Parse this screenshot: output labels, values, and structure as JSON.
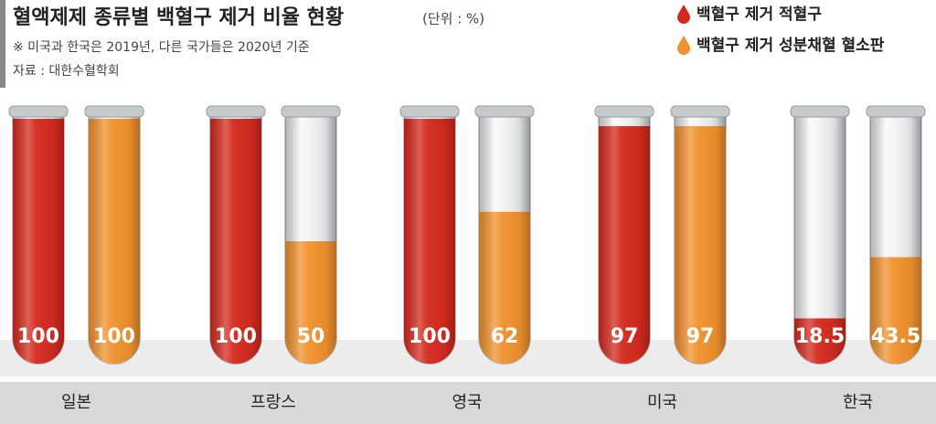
{
  "chart_data": {
    "type": "bar",
    "title": "혈액제제 종류별 백혈구 제거 비율 현황",
    "subtitle": "(단위 : %)",
    "note": "※ 미국과 한국은 2019년, 다른 국가들은 2020년 기준",
    "source": "자료 : 대한수혈학회",
    "categories": [
      "일본",
      "프랑스",
      "영국",
      "미국",
      "한국"
    ],
    "series": [
      {
        "name": "백혈구 제거 적혈구",
        "color": "#d42a1e",
        "values": [
          100,
          100,
          100,
          97,
          18.5
        ]
      },
      {
        "name": "백혈구 제거 성분채혈 혈소판",
        "color": "#f0922e",
        "values": [
          100,
          50,
          62,
          97,
          43.5
        ]
      }
    ]
  }
}
